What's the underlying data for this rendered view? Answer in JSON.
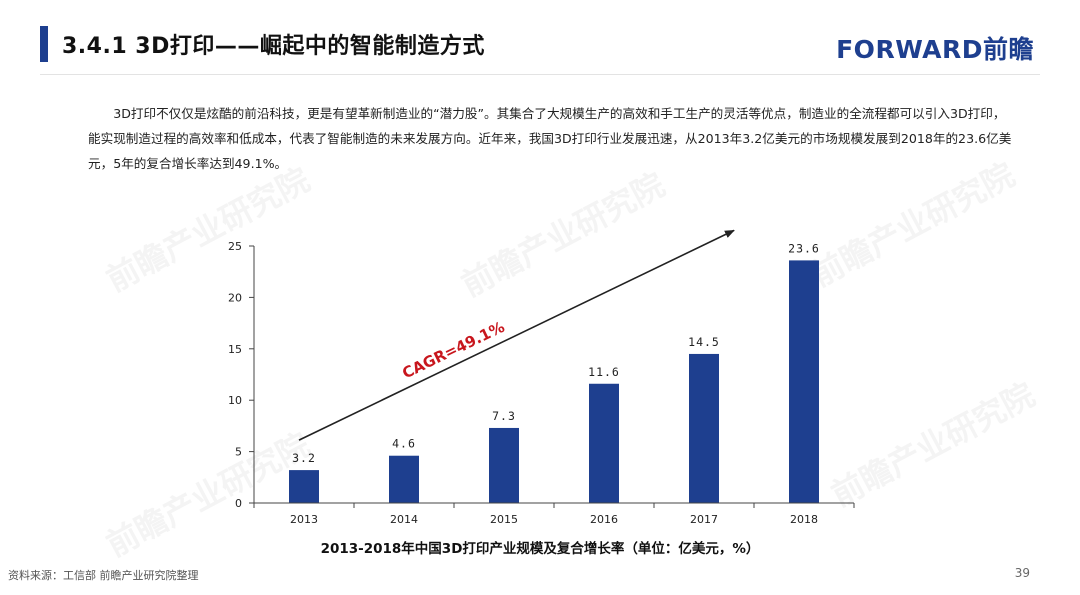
{
  "header": {
    "title": "3.4.1 3D打印——崛起中的智能制造方式",
    "logo": "FORWARD前瞻"
  },
  "body": {
    "paragraph": "3D打印不仅仅是炫酷的前沿科技，更是有望革新制造业的“潜力股”。其集合了大规模生产的高效和手工生产的灵活等优点，制造业的全流程都可以引入3D打印，能实现制造过程的高效率和低成本，代表了智能制造的未来发展方向。近年来，我国3D打印行业发展迅速，从2013年3.2亿美元的市场规模发展到2018年的23.6亿美元，5年的复合增长率达到49.1%。"
  },
  "chart_data": {
    "type": "bar",
    "title": "2013-2018年中国3D打印产业规模及复合增长率（单位：亿美元，%）",
    "categories": [
      "2013",
      "2014",
      "2015",
      "2016",
      "2017",
      "2018"
    ],
    "values": [
      3.2,
      4.6,
      7.3,
      11.6,
      14.5,
      23.6
    ],
    "data_labels": [
      "3.2",
      "4.6",
      "7.3",
      "11.6",
      "14.5",
      "23.6"
    ],
    "ylim": [
      0,
      25
    ],
    "yticks": [
      0,
      5,
      10,
      15,
      20,
      25
    ],
    "xlabel": "",
    "ylabel": "",
    "annotation": "CAGR=49.1%",
    "bar_color": "#1e3f8f",
    "annotation_color": "#c8161d",
    "arrow_color": "#222222"
  },
  "footer": {
    "source": "资料来源：工信部 前瞻产业研究院整理",
    "page_number": "39"
  },
  "watermark_text": "前瞻产业研究院"
}
